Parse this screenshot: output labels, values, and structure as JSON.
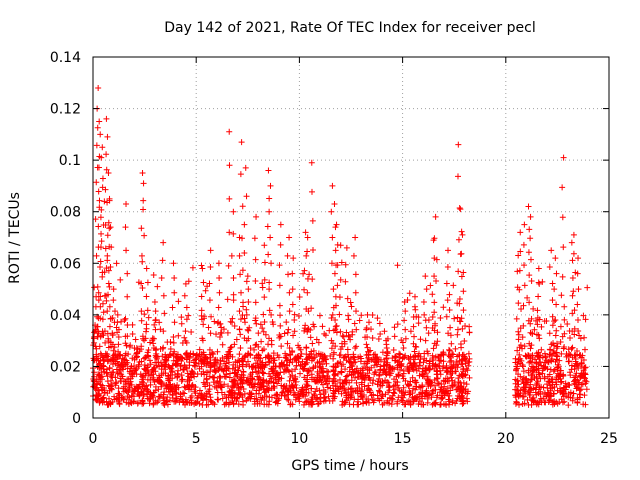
{
  "chart_data": {
    "type": "scatter",
    "title": "Day 142 of 2021, Rate Of TEC Index for receiver pecl",
    "xlabel": "GPS time / hours",
    "ylabel": "ROTI / TECUs",
    "xlim": [
      0,
      25
    ],
    "ylim": [
      0,
      0.14
    ],
    "x_ticks": [
      0,
      5,
      10,
      15,
      20,
      25
    ],
    "x_tick_labels": [
      "0",
      "5",
      "10",
      "15",
      "20",
      "25"
    ],
    "y_ticks": [
      0,
      0.02,
      0.04,
      0.06,
      0.08,
      0.1,
      0.12,
      0.14
    ],
    "y_tick_labels": [
      "0",
      "0.02",
      "0.04",
      "0.06",
      "0.08",
      "0.1",
      "0.12",
      "0.14"
    ],
    "grid": true,
    "marker": "+",
    "marker_color": "#ff0000",
    "data_gap_hours": [
      18.25,
      20.45
    ],
    "observed_time_ranges": [
      [
        0,
        18.25
      ],
      [
        20.45,
        23.95
      ]
    ],
    "typical_band": [
      0.005,
      0.025
    ],
    "series": [
      {
        "name": "ROTI",
        "points": [
          [
            0.1,
            0.036
          ],
          [
            0.15,
            0.047
          ],
          [
            0.2,
            0.12
          ],
          [
            0.25,
            0.128
          ],
          [
            0.3,
            0.115
          ],
          [
            0.35,
            0.11
          ],
          [
            0.4,
            0.101
          ],
          [
            0.45,
            0.105
          ],
          [
            0.55,
            0.084
          ],
          [
            0.65,
            0.116
          ],
          [
            0.7,
            0.109
          ],
          [
            0.75,
            0.095
          ],
          [
            0.8,
            0.085
          ],
          [
            0.85,
            0.074
          ],
          [
            1.0,
            0.05
          ],
          [
            1.2,
            0.04
          ],
          [
            1.6,
            0.083
          ],
          [
            2.4,
            0.095
          ],
          [
            2.45,
            0.091
          ],
          [
            2.6,
            0.058
          ],
          [
            3.0,
            0.045
          ],
          [
            3.4,
            0.068
          ],
          [
            3.9,
            0.06
          ],
          [
            4.5,
            0.052
          ],
          [
            5.3,
            0.058
          ],
          [
            5.7,
            0.065
          ],
          [
            6.1,
            0.06
          ],
          [
            6.6,
            0.111
          ],
          [
            6.8,
            0.08
          ],
          [
            7.1,
            0.07
          ],
          [
            7.2,
            0.107
          ],
          [
            7.4,
            0.097
          ],
          [
            7.5,
            0.055
          ],
          [
            7.9,
            0.078
          ],
          [
            8.3,
            0.067
          ],
          [
            8.5,
            0.096
          ],
          [
            8.6,
            0.09
          ],
          [
            9.1,
            0.075
          ],
          [
            9.5,
            0.07
          ],
          [
            9.7,
            0.062
          ],
          [
            10.3,
            0.072
          ],
          [
            10.4,
            0.07
          ],
          [
            10.6,
            0.099
          ],
          [
            11.6,
            0.09
          ],
          [
            11.7,
            0.083
          ],
          [
            11.8,
            0.075
          ],
          [
            12.0,
            0.067
          ],
          [
            12.3,
            0.066
          ],
          [
            12.7,
            0.07
          ],
          [
            13.3,
            0.04
          ],
          [
            14.2,
            0.03
          ],
          [
            15.1,
            0.045
          ],
          [
            15.6,
            0.047
          ],
          [
            16.1,
            0.055
          ],
          [
            16.5,
            0.069
          ],
          [
            16.6,
            0.078
          ],
          [
            17.2,
            0.065
          ],
          [
            17.7,
            0.106
          ],
          [
            17.8,
            0.081
          ],
          [
            17.9,
            0.071
          ],
          [
            20.6,
            0.063
          ],
          [
            20.7,
            0.072
          ],
          [
            20.9,
            0.075
          ],
          [
            21.1,
            0.082
          ],
          [
            21.2,
            0.078
          ],
          [
            21.6,
            0.058
          ],
          [
            22.2,
            0.065
          ],
          [
            22.4,
            0.062
          ],
          [
            22.8,
            0.101
          ],
          [
            23.2,
            0.068
          ],
          [
            23.3,
            0.071
          ],
          [
            23.5,
            0.062
          ]
        ]
      }
    ]
  }
}
